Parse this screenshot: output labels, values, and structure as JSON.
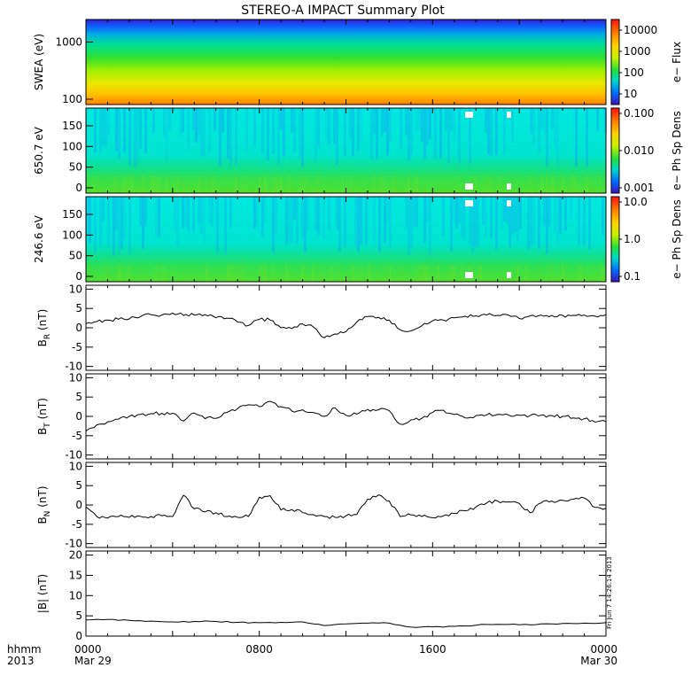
{
  "title": "STEREO-A IMPACT Summary Plot",
  "time_axis": {
    "row_label_1": "hhmm",
    "row_label_2": "2013",
    "ticks": [
      {
        "label": "0000",
        "sub": "Mar 29",
        "hour": 0
      },
      {
        "label": "0800",
        "sub": "",
        "hour": 8
      },
      {
        "label": "1600",
        "sub": "",
        "hour": 16
      },
      {
        "label": "0000",
        "sub": "Mar 30",
        "hour": 24
      }
    ]
  },
  "stamp": "Fri Jun  7 14:26:14 2013",
  "colors": {
    "line": "#000000",
    "background": "#ffffff"
  },
  "chart_data": [
    {
      "type": "heatmap",
      "ylabel": "SWEA (eV)",
      "yscale": "log",
      "yticks": [
        "1000",
        "100"
      ],
      "colorbar_label": "e− Flux",
      "colorbar_ticks": [
        "10000",
        "1000",
        "100",
        "10"
      ],
      "colorbar_scale": "log"
    },
    {
      "type": "heatmap",
      "ylabel": "650.7 eV",
      "yticks": [
        "150",
        "100",
        "50",
        "0"
      ],
      "ylim": [
        0,
        180
      ],
      "colorbar_label": "e− Ph Sp Dens",
      "colorbar_ticks": [
        "0.100",
        "0.010",
        "0.001"
      ],
      "colorbar_scale": "log"
    },
    {
      "type": "heatmap",
      "ylabel": "246.6 eV",
      "yticks": [
        "150",
        "100",
        "50",
        "0"
      ],
      "ylim": [
        0,
        180
      ],
      "colorbar_label": "e− Ph Sp Dens",
      "colorbar_ticks": [
        "10.0",
        "1.0",
        "0.1"
      ],
      "colorbar_scale": "log"
    },
    {
      "type": "line",
      "ylabel": "B",
      "ysub": "R",
      "yunit": "(nT)",
      "ylim": [
        -11,
        11
      ],
      "yticks": [
        10,
        5,
        0,
        -5,
        -10
      ],
      "x_hours": [
        0,
        0.5,
        1,
        1.5,
        2,
        2.5,
        3,
        3.5,
        4,
        4.5,
        5,
        5.5,
        6,
        6.5,
        7,
        7.5,
        8,
        8.5,
        9,
        9.5,
        10,
        10.5,
        11,
        11.5,
        12,
        12.5,
        13,
        13.5,
        14,
        14.5,
        15,
        15.5,
        16,
        16.5,
        17,
        17.5,
        18,
        18.5,
        19,
        19.5,
        20,
        20.5,
        21,
        21.5,
        22,
        22.5,
        23,
        23.5,
        24
      ],
      "values": [
        1.0,
        1.6,
        2.0,
        2.2,
        2.3,
        2.8,
        3.4,
        3.3,
        3.8,
        3.2,
        3.3,
        3.4,
        2.6,
        2.5,
        1.5,
        0.6,
        2.2,
        2.0,
        0.0,
        -0.2,
        1.0,
        0.2,
        -2.6,
        -1.6,
        -1.0,
        1.5,
        2.9,
        2.7,
        2.0,
        -0.5,
        -0.8,
        0.5,
        1.8,
        2.0,
        2.6,
        3.0,
        3.1,
        3.3,
        3.2,
        3.3,
        2.4,
        3.1,
        3.3,
        3.2,
        3.2,
        3.2,
        3.3,
        3.0,
        3.4
      ]
    },
    {
      "type": "line",
      "ylabel": "B",
      "ysub": "T",
      "yunit": "(nT)",
      "ylim": [
        -11,
        11
      ],
      "yticks": [
        10,
        5,
        0,
        -5,
        -10
      ],
      "x_hours": [
        0,
        0.5,
        1,
        1.5,
        2,
        2.5,
        3,
        3.5,
        4,
        4.5,
        5,
        5.5,
        6,
        6.5,
        7,
        7.5,
        8,
        8.5,
        9,
        9.5,
        10,
        10.5,
        11,
        11.5,
        12,
        12.5,
        13,
        13.5,
        14,
        14.5,
        15,
        15.5,
        16,
        16.5,
        17,
        17.5,
        18,
        18.5,
        19,
        19.5,
        20,
        20.5,
        21,
        21.5,
        22,
        22.5,
        23,
        23.5,
        24
      ],
      "values": [
        -3.8,
        -2.2,
        -1.4,
        -0.7,
        0.0,
        0.5,
        0.7,
        0.8,
        0.8,
        -1.2,
        0.9,
        -0.6,
        -0.5,
        1.0,
        2.0,
        3.0,
        2.5,
        3.9,
        2.5,
        1.4,
        1.7,
        1.0,
        0.0,
        2.2,
        0.3,
        0.6,
        1.8,
        1.7,
        1.5,
        -2.0,
        -0.9,
        -0.5,
        1.0,
        1.6,
        0.5,
        -0.4,
        0.2,
        0.4,
        0.5,
        0.4,
        0.3,
        0.2,
        0.3,
        0.2,
        0.0,
        -0.4,
        -0.6,
        -1.5,
        -1.4
      ]
    },
    {
      "type": "line",
      "ylabel": "B",
      "ysub": "N",
      "yunit": "(nT)",
      "ylim": [
        -11,
        11
      ],
      "yticks": [
        10,
        5,
        0,
        -5,
        -10
      ],
      "x_hours": [
        0,
        0.5,
        1,
        1.5,
        2,
        2.5,
        3,
        3.5,
        4,
        4.5,
        5,
        5.5,
        6,
        6.5,
        7,
        7.5,
        8,
        8.5,
        9,
        9.5,
        10,
        10.5,
        11,
        11.5,
        12,
        12.5,
        13,
        13.5,
        14,
        14.5,
        15,
        15.5,
        16,
        16.5,
        17,
        17.5,
        18,
        18.5,
        19,
        19.5,
        20,
        20.5,
        21,
        21.5,
        22,
        22.5,
        23,
        23.5,
        24
      ],
      "values": [
        -0.5,
        -3.0,
        -3.4,
        -3.0,
        -3.2,
        -2.9,
        -3.0,
        -2.8,
        -3.0,
        2.5,
        -1.0,
        -1.8,
        -2.0,
        -3.0,
        -3.2,
        -3.0,
        2.0,
        2.4,
        -1.3,
        -1.2,
        -2.0,
        -2.5,
        -3.0,
        -3.2,
        -2.8,
        -2.5,
        1.5,
        2.6,
        1.0,
        -3.0,
        -2.6,
        -3.0,
        -3.3,
        -2.8,
        -2.2,
        -1.5,
        -0.5,
        0.5,
        1.0,
        0.8,
        0.4,
        -2.0,
        0.5,
        1.0,
        1.2,
        1.5,
        1.8,
        -0.6,
        -0.8
      ]
    },
    {
      "type": "line",
      "ylabel": "|B| (nT)",
      "ylim": [
        0,
        21
      ],
      "yticks": [
        20,
        15,
        10,
        5,
        0
      ],
      "x_hours": [
        0,
        1,
        2,
        3,
        4,
        5,
        6,
        7,
        8,
        9,
        10,
        11,
        12,
        13,
        14,
        15,
        16,
        17,
        18,
        19,
        20,
        21,
        22,
        23,
        24
      ],
      "values": [
        4.0,
        4.1,
        3.9,
        3.7,
        3.5,
        3.6,
        3.6,
        3.4,
        3.3,
        3.4,
        3.5,
        2.6,
        3.0,
        3.2,
        3.2,
        2.2,
        2.3,
        2.4,
        2.7,
        2.9,
        2.8,
        3.0,
        3.1,
        3.2,
        3.3
      ]
    }
  ]
}
